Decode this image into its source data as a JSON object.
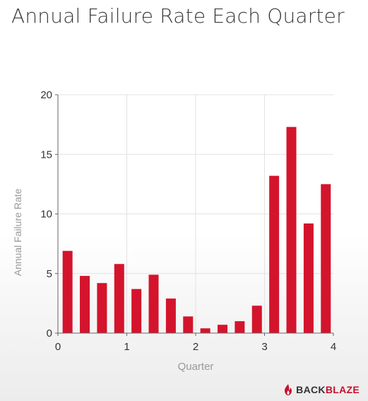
{
  "header": {
    "title": "Annual Failure Rate Each Quarter"
  },
  "brand": {
    "logo_icon": "flame-icon",
    "text_part1": "BACK",
    "text_part2": "BLAZE",
    "color_dark": "#333333",
    "color_red": "#c8102e"
  },
  "chart_data": {
    "type": "bar",
    "title": "Annual Failure Rate Each Quarter",
    "xlabel": "Quarter",
    "ylabel": "Annual Failure Rate",
    "xlim": [
      0,
      4
    ],
    "ylim": [
      0,
      20
    ],
    "x_ticks": [
      0,
      1,
      2,
      3,
      4
    ],
    "y_ticks": [
      0,
      5,
      10,
      15,
      20
    ],
    "grid": true,
    "bar_color": "#d4142c",
    "x": [
      0.14,
      0.39,
      0.64,
      0.89,
      1.14,
      1.39,
      1.64,
      1.89,
      2.14,
      2.39,
      2.64,
      2.89,
      3.14,
      3.39,
      3.64,
      3.89
    ],
    "values": [
      6.9,
      4.8,
      4.2,
      5.8,
      3.7,
      4.9,
      2.9,
      1.4,
      0.4,
      0.7,
      1.0,
      2.3,
      13.2,
      17.3,
      9.2,
      12.5
    ]
  }
}
